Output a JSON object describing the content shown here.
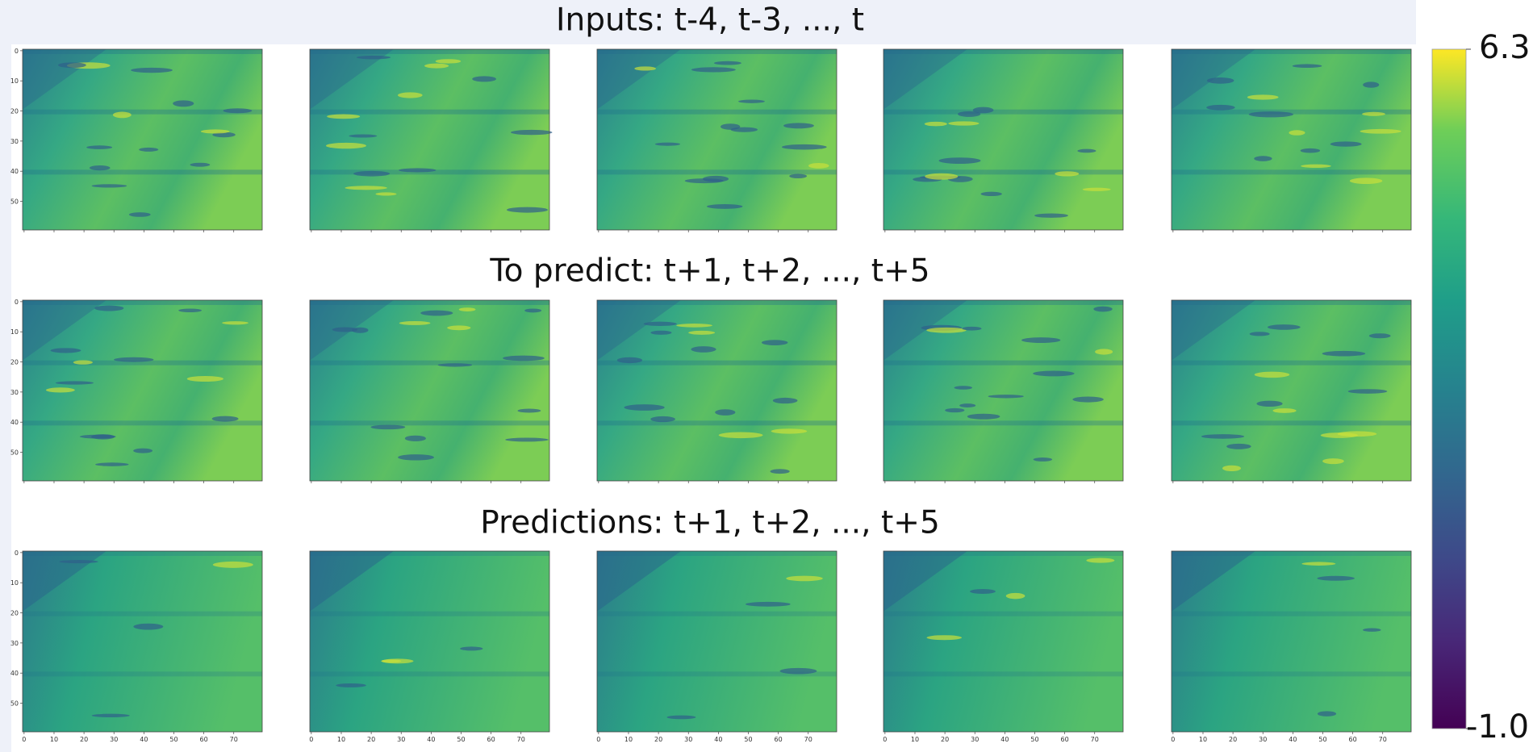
{
  "rows": [
    {
      "title": "Inputs: t-4, t-3, ..., t"
    },
    {
      "title": "To predict: t+1, t+2, ..., t+5"
    },
    {
      "title": "Predictions: t+1, t+2, ..., t+5"
    }
  ],
  "panel_xticks": [
    0,
    10,
    20,
    30,
    40,
    50,
    60,
    70
  ],
  "panel_yticks": [
    0,
    10,
    20,
    30,
    40,
    50
  ],
  "colorbar": {
    "ticks": [
      {
        "value": -1,
        "label": "-1.0"
      },
      6.3
    ]
  }
}
